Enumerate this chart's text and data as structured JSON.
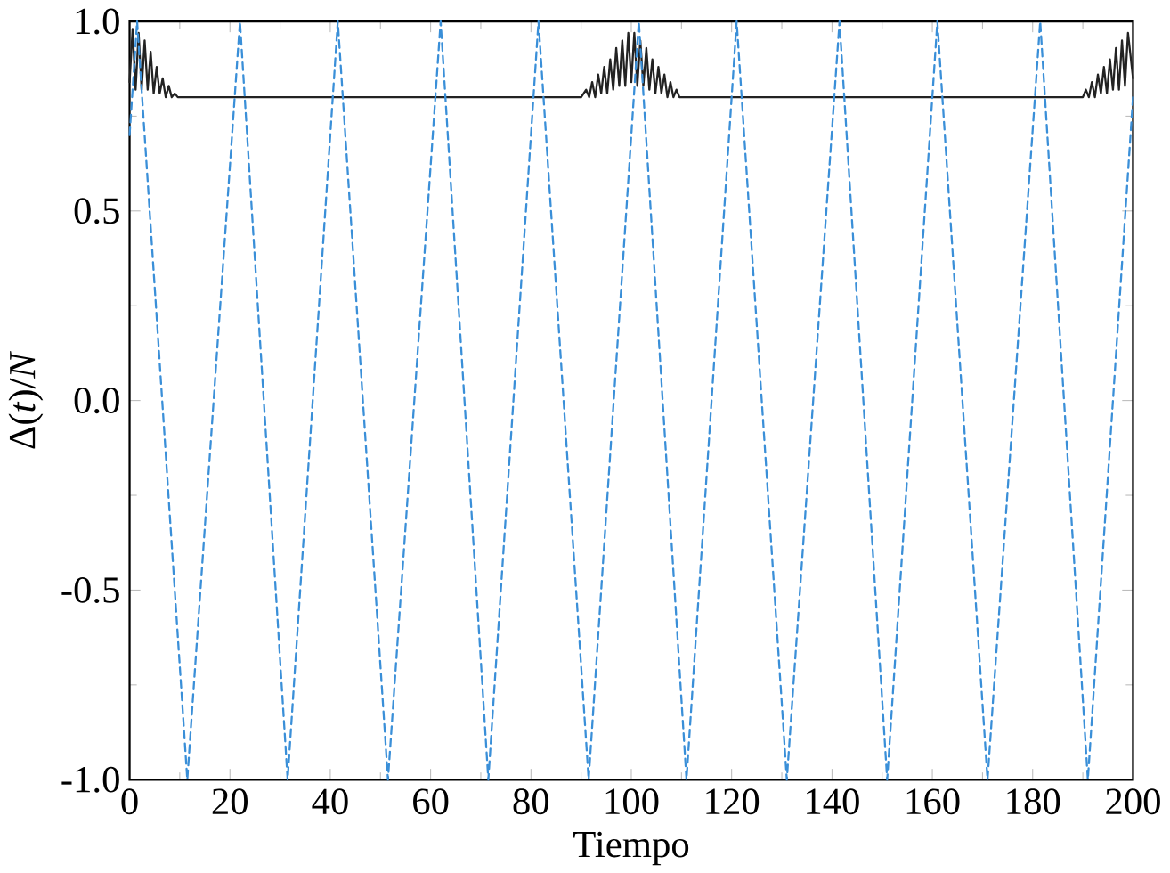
{
  "chart_data": {
    "type": "line",
    "xlabel": "Tiempo",
    "ylabel": "Δ(*t*)/*N*",
    "xlim": [
      0,
      200
    ],
    "ylim": [
      -1.0,
      1.0
    ],
    "xticks": [
      0,
      20,
      40,
      60,
      80,
      100,
      120,
      140,
      160,
      180,
      200
    ],
    "yticks": [
      {
        "value": -1.0,
        "label": "-1.0"
      },
      {
        "value": -0.5,
        "label": "-0.5"
      },
      {
        "value": 0.0,
        "label": "0.0"
      },
      {
        "value": 0.5,
        "label": "0.5"
      },
      {
        "value": 1.0,
        "label": "1.0"
      }
    ],
    "marker": "none",
    "series": [
      {
        "color": "#222222",
        "line_style": "solid",
        "x": [
          0,
          0.6,
          1.2,
          1.8,
          2.4,
          3.0,
          3.6,
          4.2,
          4.8,
          5.4,
          6.0,
          6.6,
          7.2,
          7.8,
          8.4,
          9.0,
          9.6,
          90,
          91,
          91.6,
          92.2,
          92.8,
          93.4,
          94.0,
          94.6,
          95.2,
          95.8,
          96.4,
          97.0,
          97.6,
          98.2,
          98.8,
          99.4,
          100.0,
          100.6,
          101.2,
          101.8,
          102.4,
          103.0,
          103.6,
          104.2,
          104.8,
          105.4,
          106.0,
          106.6,
          107.2,
          107.8,
          108.4,
          109.0,
          109.6,
          190,
          190.6,
          191.2,
          191.8,
          192.4,
          193.0,
          193.6,
          194.2,
          194.8,
          195.4,
          196.0,
          196.6,
          197.2,
          197.8,
          198.4,
          199.0,
          200
        ],
        "values": [
          0.84,
          0.98,
          0.82,
          0.97,
          0.82,
          0.95,
          0.82,
          0.92,
          0.81,
          0.88,
          0.81,
          0.85,
          0.8,
          0.83,
          0.8,
          0.81,
          0.8,
          0.8,
          0.82,
          0.8,
          0.84,
          0.8,
          0.86,
          0.81,
          0.88,
          0.81,
          0.9,
          0.82,
          0.93,
          0.83,
          0.95,
          0.83,
          0.97,
          0.84,
          0.97,
          0.83,
          0.95,
          0.83,
          0.93,
          0.82,
          0.9,
          0.81,
          0.88,
          0.81,
          0.86,
          0.8,
          0.84,
          0.8,
          0.82,
          0.8,
          0.8,
          0.82,
          0.8,
          0.84,
          0.8,
          0.86,
          0.81,
          0.88,
          0.81,
          0.9,
          0.82,
          0.93,
          0.82,
          0.95,
          0.83,
          0.97,
          0.85
        ]
      },
      {
        "color": "#3a8fd8",
        "line_style": "dashed",
        "x": [
          0,
          1.5,
          11.5,
          22,
          31.5,
          41.5,
          51.5,
          62,
          71.5,
          81.5,
          91.5,
          101.5,
          111,
          121,
          131,
          141.5,
          151,
          161,
          171,
          181.5,
          191,
          200
        ],
        "values": [
          0.7,
          1.0,
          -1.0,
          1.0,
          -1.0,
          1.0,
          -1.0,
          1.0,
          -1.0,
          1.0,
          -1.0,
          1.0,
          -1.0,
          1.0,
          -1.0,
          1.0,
          -1.0,
          1.0,
          -1.0,
          1.0,
          -1.0,
          0.8
        ]
      }
    ]
  }
}
